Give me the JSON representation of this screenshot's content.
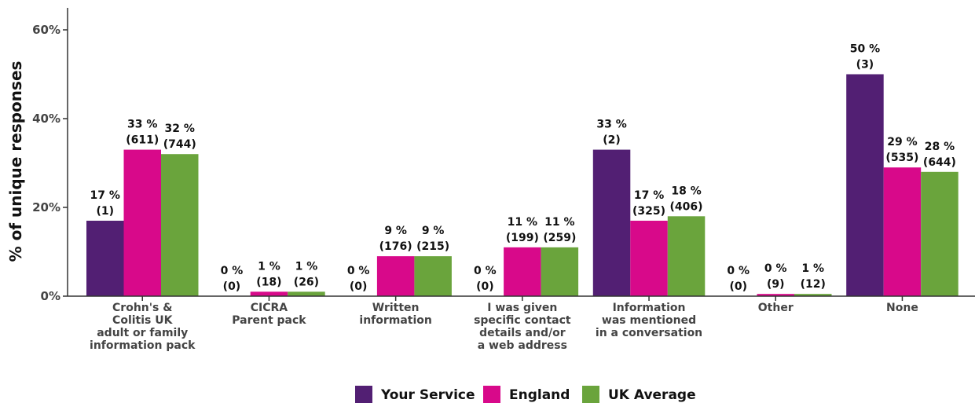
{
  "chart_data": {
    "type": "bar",
    "ylabel": "% of unique responses",
    "ylim": [
      0,
      60
    ],
    "yticks": [
      "0%",
      "20%",
      "40%",
      "60%"
    ],
    "ytick_values": [
      0,
      20,
      40,
      60
    ],
    "grid": false,
    "legend_position": "bottom",
    "categories": [
      [
        "Crohn's &",
        "Colitis UK",
        "adult or family",
        "information pack"
      ],
      [
        "CICRA",
        "Parent pack"
      ],
      [
        "Written",
        "information"
      ],
      [
        "I was given",
        "specific contact",
        "details and/or",
        "a web address"
      ],
      [
        "Information",
        "was mentioned",
        "in a conversation"
      ],
      [
        "Other"
      ],
      [
        "None"
      ]
    ],
    "series": [
      {
        "name": "Your Service",
        "color": "#521f73",
        "values": [
          17,
          0,
          0,
          0,
          33,
          0,
          50
        ],
        "labels": [
          [
            "17 %",
            "(1)"
          ],
          [
            "0 %",
            "(0)"
          ],
          [
            "0 %",
            "(0)"
          ],
          [
            "0 %",
            "(0)"
          ],
          [
            "33 %",
            "(2)"
          ],
          [
            "0 %",
            "(0)"
          ],
          [
            "50 %",
            "(3)"
          ]
        ]
      },
      {
        "name": "England",
        "color": "#d8098a",
        "values": [
          33,
          1,
          9,
          11,
          17,
          0.5,
          29
        ],
        "labels": [
          [
            "33 %",
            "(611)"
          ],
          [
            "1 %",
            "(18)"
          ],
          [
            "9 %",
            "(176)"
          ],
          [
            "11 %",
            "(199)"
          ],
          [
            "17 %",
            "(325)"
          ],
          [
            "0 %",
            "(9)"
          ],
          [
            "29 %",
            "(535)"
          ]
        ]
      },
      {
        "name": "UK Average",
        "color": "#6aa43c",
        "values": [
          32,
          1,
          9,
          11,
          18,
          0.5,
          28
        ],
        "labels": [
          [
            "32 %",
            "(744)"
          ],
          [
            "1 %",
            "(26)"
          ],
          [
            "9 %",
            "(215)"
          ],
          [
            "11 %",
            "(259)"
          ],
          [
            "18 %",
            "(406)"
          ],
          [
            "1 %",
            "(12)"
          ],
          [
            "28 %",
            "(644)"
          ]
        ]
      }
    ]
  }
}
